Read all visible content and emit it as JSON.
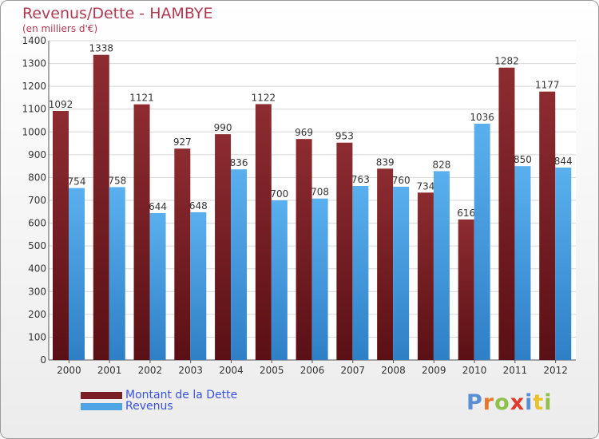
{
  "title": "Revenus/Dette - HAMBYE",
  "subtitle": "(en milliers d'€)",
  "colors": {
    "dette": "#7a1f24",
    "revenus": "#4fa5e4",
    "title": "#b03a50",
    "legend_text": "#3a52e0"
  },
  "logo": {
    "text": "Proxiti",
    "letters": [
      "P",
      "r",
      "o",
      "x",
      "i",
      "t",
      "i"
    ],
    "colors": [
      "#5a8fd6",
      "#e8762b",
      "#8fc04a",
      "#e03a2f",
      "#5a8fd6",
      "#e8c22b",
      "#8fc04a"
    ]
  },
  "chart_data": {
    "type": "bar",
    "categories": [
      "2000",
      "2001",
      "2002",
      "2003",
      "2004",
      "2005",
      "2006",
      "2007",
      "2008",
      "2009",
      "2010",
      "2011",
      "2012"
    ],
    "series": [
      {
        "name": "Montant de la Dette",
        "values": [
          1092,
          1338,
          1121,
          927,
          990,
          1122,
          969,
          953,
          839,
          734,
          616,
          1282,
          1177
        ],
        "color": "#7a1f24"
      },
      {
        "name": "Revenus",
        "values": [
          754,
          758,
          644,
          648,
          836,
          700,
          708,
          763,
          760,
          828,
          1036,
          850,
          844
        ],
        "color": "#4fa5e4"
      }
    ],
    "ylim": [
      0,
      1400
    ],
    "yticks": [
      0,
      100,
      200,
      300,
      400,
      500,
      600,
      700,
      800,
      900,
      1000,
      1100,
      1200,
      1300,
      1400
    ],
    "grid": true,
    "legend": "bottom-left"
  }
}
